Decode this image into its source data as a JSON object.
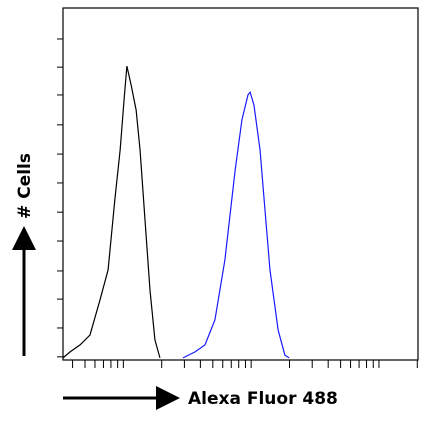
{
  "chart_data": {
    "type": "line",
    "x_label": "Alexa Fluor 488",
    "y_label": "# Cells",
    "xlim": [
      0,
      100
    ],
    "ylim": [
      0,
      100
    ],
    "xticks": [
      2.7,
      6.2,
      9.0,
      11.4,
      13.5,
      15.4,
      17.0,
      27.8,
      34.2,
      38.7,
      42.2,
      45.0,
      47.4,
      49.5,
      51.4,
      53.0,
      63.8,
      70.2,
      74.7,
      78.2,
      81.0,
      83.4,
      85.5,
      87.4,
      89.0,
      99.8
    ],
    "yticks": [
      0.9,
      9.1,
      17.3,
      25.3,
      33.8,
      42.0,
      50.3,
      58.5,
      66.8,
      75.3,
      83.2,
      91.2
    ],
    "series": [
      {
        "color": "#000000",
        "x": [
          0,
          2.0,
          4.8,
          7.6,
          10.4,
          12.7,
          14.6,
          16.1,
          17.2,
          18.0,
          19.2,
          20.6,
          21.7,
          23.1,
          24.5,
          25.9,
          27.3
        ],
        "values": [
          0.6,
          2.3,
          4.3,
          7.1,
          17.0,
          25.6,
          45.5,
          59.7,
          73.9,
          83.5,
          78.1,
          71.0,
          59.7,
          39.8,
          19.9,
          5.7,
          0.6
        ]
      },
      {
        "color": "#1a1aff",
        "x": [
          33.8,
          37.2,
          40.0,
          42.8,
          45.6,
          48.5,
          50.4,
          52.1,
          52.7,
          53.8,
          55.5,
          56.9,
          58.3,
          60.6,
          62.5,
          63.7
        ],
        "values": [
          0.6,
          2.3,
          4.3,
          11.4,
          28.4,
          54.0,
          68.2,
          75.3,
          76.1,
          72.4,
          59.7,
          42.6,
          25.6,
          8.5,
          1.4,
          0.6
        ]
      }
    ]
  }
}
